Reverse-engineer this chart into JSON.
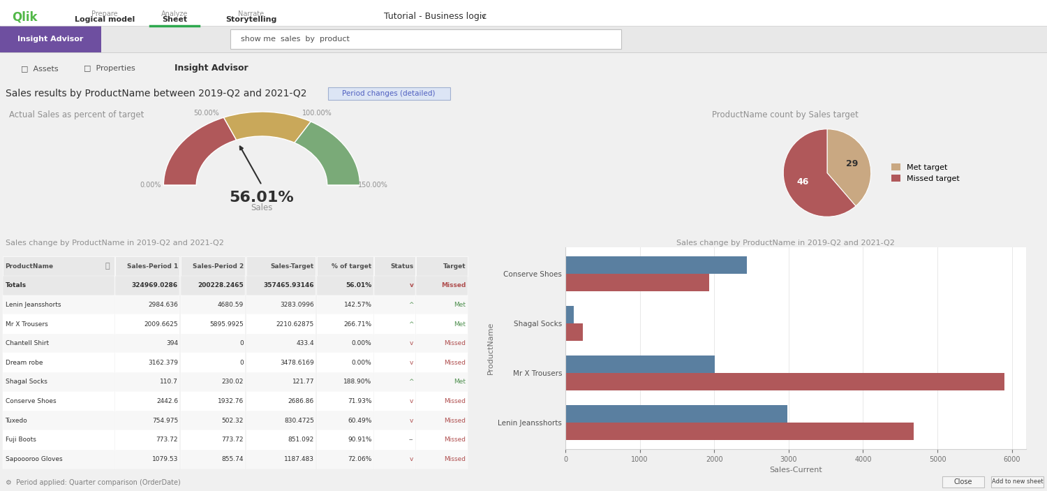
{
  "title": "Sales results by ProductName between 2019-Q2 and 2021-Q2",
  "period_tag": "Period changes (detailed)",
  "gauge_title": "Actual Sales as percent of target",
  "gauge_value": 56.01,
  "gauge_label": "Sales",
  "gauge_min": 0.0,
  "gauge_max": 150.0,
  "pie_title": "ProductName count by Sales target",
  "pie_slices": [
    {
      "label": "Met target",
      "value": 29,
      "color": "#c9a882"
    },
    {
      "label": "Missed target",
      "value": 46,
      "color": "#b0585a"
    }
  ],
  "table_title": "Sales change by ProductName in 2019-Q2 and 2021-Q2",
  "table_columns": [
    "ProductName",
    "Sales-Period 1",
    "Sales-Period 2",
    "Sales-Target",
    "% of target",
    "Status",
    "Target"
  ],
  "table_rows": [
    [
      "Totals",
      "324969.0286",
      "200228.2465",
      "357465.93146",
      "56.01%",
      "v",
      "Missed"
    ],
    [
      "Lenin Jeansshorts",
      "2984.636",
      "4680.59",
      "3283.0996",
      "142.57%",
      "^",
      "Met"
    ],
    [
      "Mr X Trousers",
      "2009.6625",
      "5895.9925",
      "2210.62875",
      "266.71%",
      "^",
      "Met"
    ],
    [
      "Chantell Shirt",
      "394",
      "0",
      "433.4",
      "0.00%",
      "v",
      "Missed"
    ],
    [
      "Dream robe",
      "3162.379",
      "0",
      "3478.6169",
      "0.00%",
      "v",
      "Missed"
    ],
    [
      "Shagal Socks",
      "110.7",
      "230.02",
      "121.77",
      "188.90%",
      "^",
      "Met"
    ],
    [
      "Conserve Shoes",
      "2442.6",
      "1932.76",
      "2686.86",
      "71.93%",
      "v",
      "Missed"
    ],
    [
      "Tuxedo",
      "754.975",
      "502.32",
      "830.4725",
      "60.49%",
      "v",
      "Missed"
    ],
    [
      "Fuji Boots",
      "773.72",
      "773.72",
      "851.092",
      "90.91%",
      "--",
      "Missed"
    ],
    [
      "Sapoooroo Gloves",
      "1079.53",
      "855.74",
      "1187.483",
      "72.06%",
      "v",
      "Missed"
    ]
  ],
  "bar_title": "Sales change by ProductName in 2019-Q2 and 2021-Q2",
  "bar_products": [
    "Lenin Jeansshorts",
    "Mr X Trousers",
    "Shagal Socks",
    "Conserve Shoes"
  ],
  "bar_period1": [
    2984.636,
    2009.6625,
    110.7,
    2442.6
  ],
  "bar_period2": [
    4680.59,
    5895.9925,
    230.02,
    1932.76
  ],
  "bar_color1": "#5a7fa0",
  "bar_color2": "#b0585a",
  "bar_xlabel": "Sales-Current",
  "bar_ylabel": "ProductName",
  "gauge_color_red": "#b0585a",
  "gauge_color_yellow": "#c9a85a",
  "gauge_color_green": "#7aaa78",
  "bg_color": "#f0f0f0",
  "panel_bg": "#ffffff",
  "header_strip_bg": "#e8e8e8",
  "text_color": "#404040",
  "subtitle_color": "#909090",
  "header_bg": "#e0e0e0",
  "met_color": "#509050",
  "missed_color": "#b05050",
  "arrow_up_color": "#509050",
  "arrow_down_color": "#b05050",
  "neutral_color": "#606060"
}
